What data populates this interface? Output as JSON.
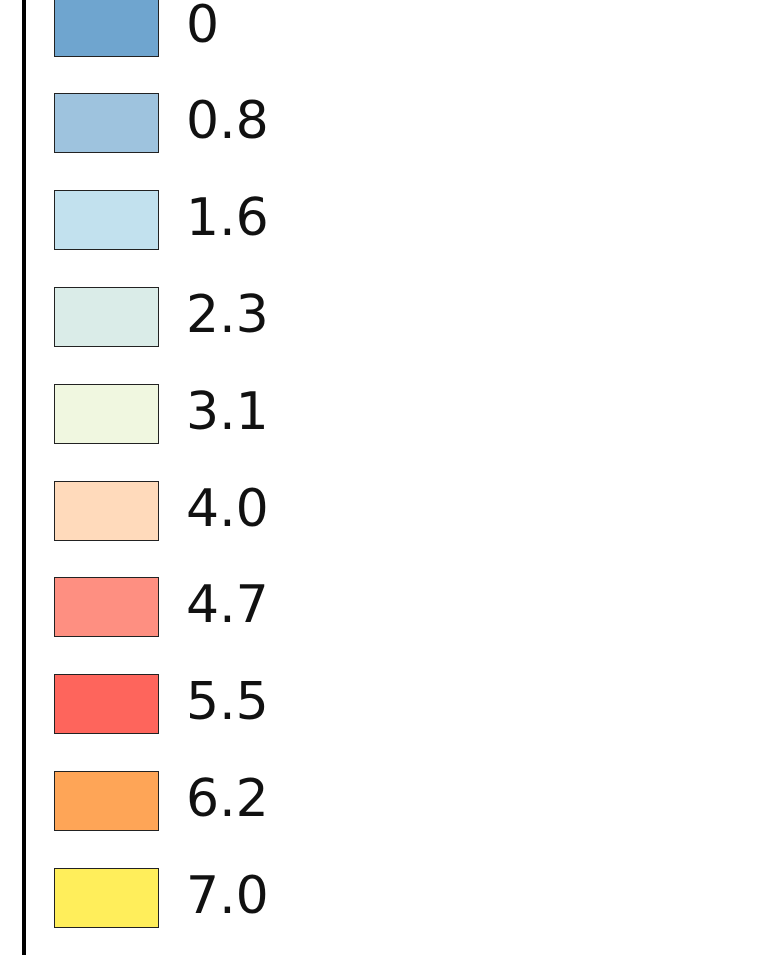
{
  "legend": {
    "items": [
      {
        "label": "0",
        "color": "#6fa5cf"
      },
      {
        "label": "0.8",
        "color": "#9ec3de"
      },
      {
        "label": "1.6",
        "color": "#c2e1ee"
      },
      {
        "label": "2.3",
        "color": "#daece8"
      },
      {
        "label": "3.1",
        "color": "#f0f7e0"
      },
      {
        "label": "4.0",
        "color": "#ffdabb"
      },
      {
        "label": "4.7",
        "color": "#fe8f81"
      },
      {
        "label": "5.5",
        "color": "#fe655c"
      },
      {
        "label": "6.2",
        "color": "#fea557"
      },
      {
        "label": "7.0",
        "color": "#ffee5b"
      }
    ]
  }
}
